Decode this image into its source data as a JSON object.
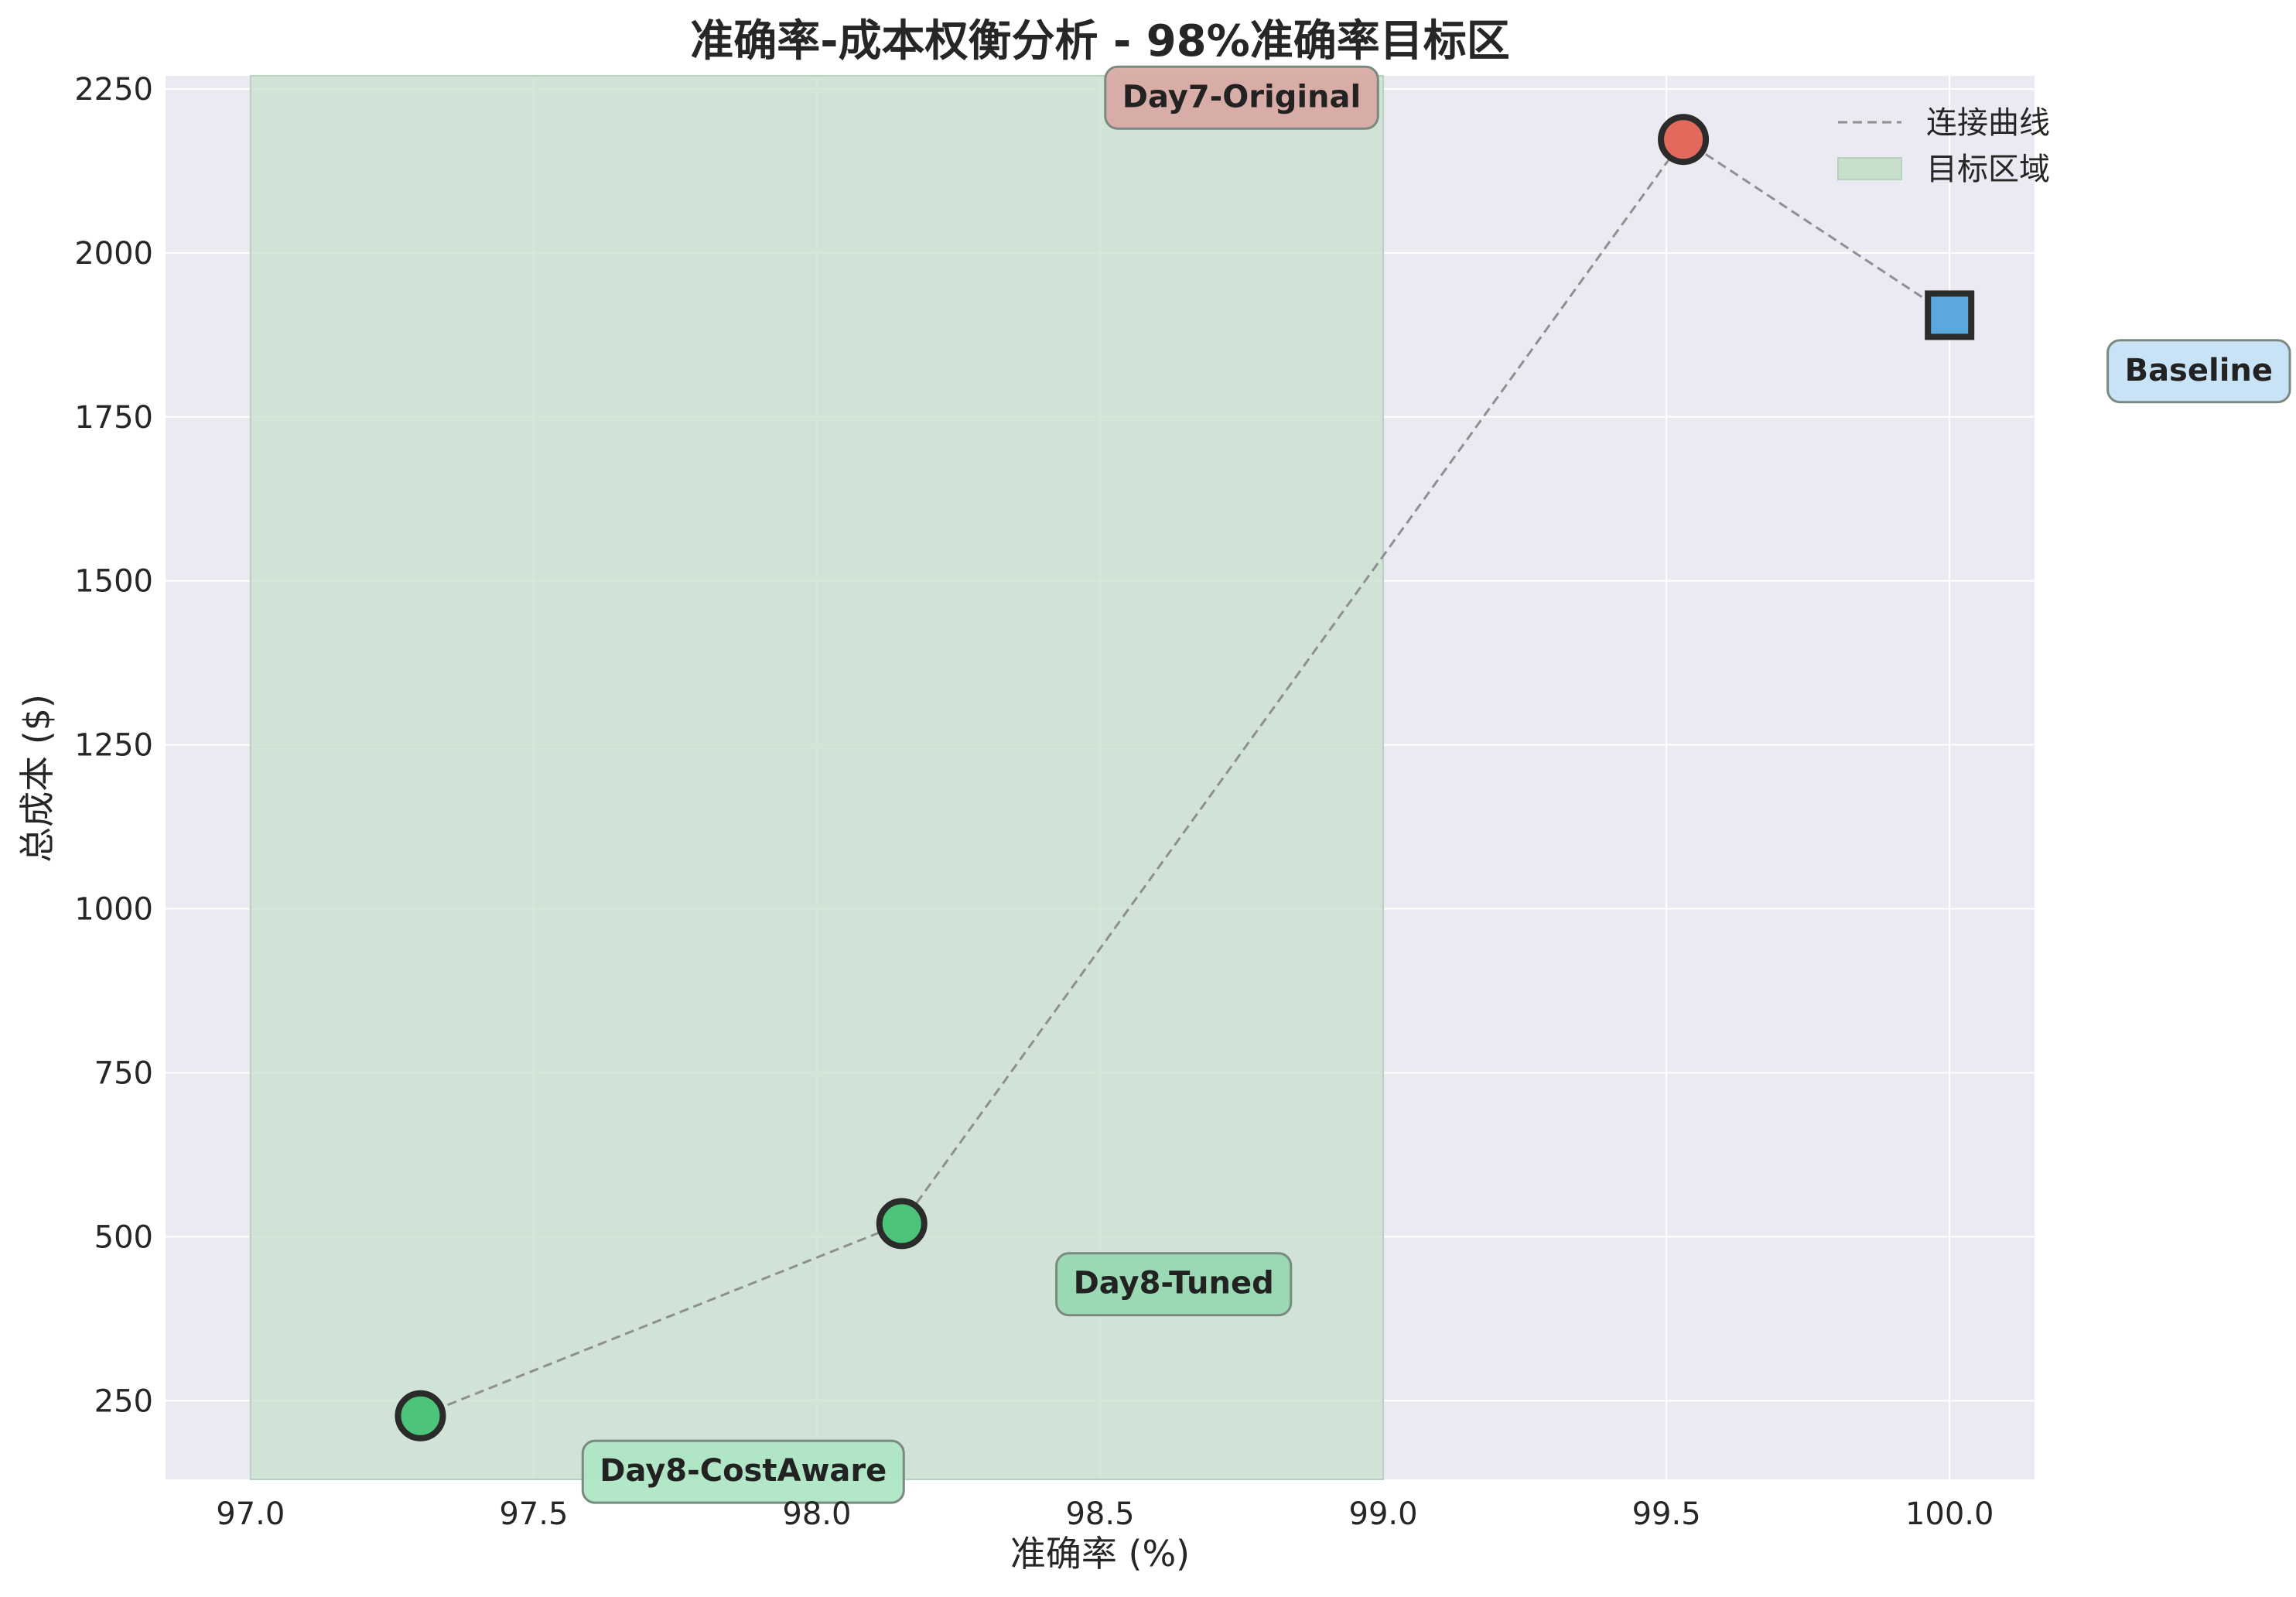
{
  "chart_data": {
    "type": "scatter",
    "title": "准确率-成本权衡分析 - 98%准确率目标区",
    "xlabel": "准确率 (%)",
    "ylabel": "总成本 ($)",
    "xlim": [
      96.85,
      100.15
    ],
    "ylim": [
      130,
      2270
    ],
    "xticks": [
      97.0,
      97.5,
      98.0,
      98.5,
      99.0,
      99.5,
      100.0
    ],
    "xtick_labels": [
      "97.0",
      "97.5",
      "98.0",
      "98.5",
      "99.0",
      "99.5",
      "100.0"
    ],
    "yticks": [
      250,
      500,
      750,
      1000,
      1250,
      1500,
      1750,
      2000,
      2250
    ],
    "ytick_labels": [
      "250",
      "500",
      "750",
      "1000",
      "1250",
      "1500",
      "1750",
      "2000",
      "2250"
    ],
    "grid": true,
    "legend_position": "top-right",
    "target_zone": {
      "x_start": 97.0,
      "x_end": 99.0,
      "color": "#c8dfcc"
    },
    "points": [
      {
        "name": "Day8-CostAware",
        "x": 97.3,
        "y": 227,
        "marker": "circle",
        "color": "#4cc47a",
        "label_bg": "#aee6c4",
        "label_dx": 0.57,
        "label_dy": -83
      },
      {
        "name": "Day8-Tuned",
        "x": 98.15,
        "y": 520,
        "marker": "circle",
        "color": "#4cc47a",
        "label_bg": "#98d8b2",
        "label_dx": 0.48,
        "label_dy": -90
      },
      {
        "name": "Day7-Original",
        "x": 99.53,
        "y": 2173,
        "marker": "circle",
        "color": "#e26a5c",
        "label_bg": "#d8aaa4",
        "label_dx": -0.78,
        "label_dy": 66
      },
      {
        "name": "Baseline",
        "x": 100.0,
        "y": 1905,
        "marker": "square",
        "color": "#5aa8dd",
        "label_bg": "#c5e0f5",
        "label_dx": 0.44,
        "label_dy": -83
      }
    ],
    "legend": [
      {
        "label": "连接曲线",
        "kind": "dashed-line",
        "color": "#8f8f8f"
      },
      {
        "label": "目标区域",
        "kind": "patch",
        "color": "#c8dfcc"
      }
    ],
    "colors": {
      "plot_bg": "#eaeaf2",
      "grid": "#ffffff",
      "line": "#8f8f8f",
      "edge": "#2b2b2b"
    }
  }
}
